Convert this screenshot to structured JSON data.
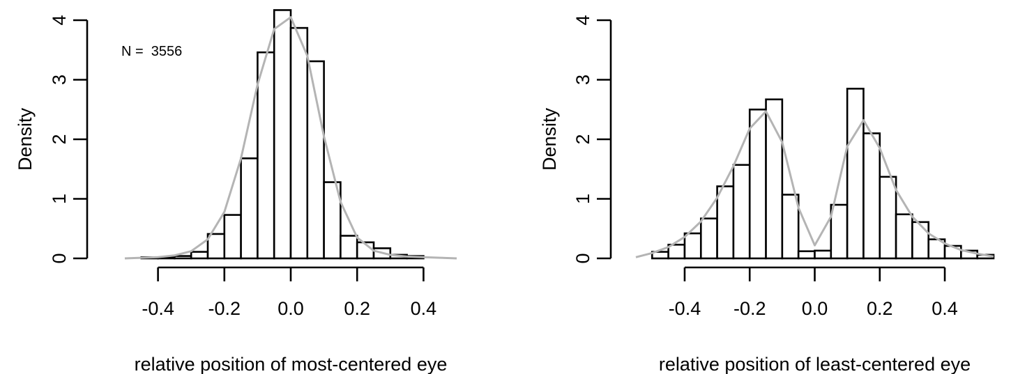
{
  "chart_data": [
    {
      "type": "bar",
      "subtype": "histogram",
      "xlabel": "relative position of most-centered eye",
      "ylabel": "Density",
      "annotation": "N =  3556",
      "xlim": [
        -0.5,
        0.5
      ],
      "ylim": [
        0,
        4
      ],
      "x_ticks": [
        -0.4,
        -0.2,
        0.0,
        0.2,
        0.4
      ],
      "x_tick_labels": [
        "-0.4",
        "-0.2",
        "0.0",
        "0.2",
        "0.4"
      ],
      "y_ticks": [
        0,
        1,
        2,
        3,
        4
      ],
      "y_tick_labels": [
        "0",
        "1",
        "2",
        "3",
        "4"
      ],
      "bin_width": 0.05,
      "bins": [
        {
          "from": -0.45,
          "to": -0.4,
          "density": 0.02
        },
        {
          "from": -0.4,
          "to": -0.35,
          "density": 0.02
        },
        {
          "from": -0.35,
          "to": -0.3,
          "density": 0.04
        },
        {
          "from": -0.3,
          "to": -0.25,
          "density": 0.11
        },
        {
          "from": -0.25,
          "to": -0.2,
          "density": 0.41
        },
        {
          "from": -0.2,
          "to": -0.15,
          "density": 0.73
        },
        {
          "from": -0.15,
          "to": -0.1,
          "density": 1.68
        },
        {
          "from": -0.1,
          "to": -0.05,
          "density": 3.46
        },
        {
          "from": -0.05,
          "to": 0.0,
          "density": 4.17
        },
        {
          "from": 0.0,
          "to": 0.05,
          "density": 3.87
        },
        {
          "from": 0.05,
          "to": 0.1,
          "density": 3.31
        },
        {
          "from": 0.1,
          "to": 0.15,
          "density": 1.28
        },
        {
          "from": 0.15,
          "to": 0.2,
          "density": 0.38
        },
        {
          "from": 0.2,
          "to": 0.25,
          "density": 0.27
        },
        {
          "from": 0.25,
          "to": 0.3,
          "density": 0.17
        },
        {
          "from": 0.3,
          "to": 0.35,
          "density": 0.06
        },
        {
          "from": 0.35,
          "to": 0.4,
          "density": 0.04
        }
      ],
      "density_curve": {
        "color": "#b4b4b4",
        "x": [
          -0.5,
          -0.45,
          -0.4,
          -0.35,
          -0.3,
          -0.25,
          -0.2,
          -0.15,
          -0.1,
          -0.05,
          0.0,
          0.05,
          0.1,
          0.15,
          0.2,
          0.25,
          0.3,
          0.35,
          0.4,
          0.45,
          0.5
        ],
        "y": [
          0.0,
          0.01,
          0.02,
          0.05,
          0.12,
          0.32,
          0.78,
          1.68,
          2.92,
          3.85,
          4.05,
          3.4,
          2.05,
          0.95,
          0.35,
          0.13,
          0.06,
          0.03,
          0.02,
          0.01,
          0.0
        ]
      },
      "grid": false,
      "bar_color": "#ffffff",
      "edge_color": "#000000"
    },
    {
      "type": "bar",
      "subtype": "histogram",
      "xlabel": "relative position of least-centered eye",
      "ylabel": "Density",
      "xlim": [
        -0.55,
        0.55
      ],
      "ylim": [
        0,
        4
      ],
      "x_ticks": [
        -0.4,
        -0.2,
        0.0,
        0.2,
        0.4
      ],
      "x_tick_labels": [
        "-0.4",
        "-0.2",
        "0.0",
        "0.2",
        "0.4"
      ],
      "y_ticks": [
        0,
        1,
        2,
        3,
        4
      ],
      "y_tick_labels": [
        "0",
        "1",
        "2",
        "3",
        "4"
      ],
      "bin_width": 0.05,
      "bins": [
        {
          "from": -0.5,
          "to": -0.45,
          "density": 0.11
        },
        {
          "from": -0.45,
          "to": -0.4,
          "density": 0.23
        },
        {
          "from": -0.4,
          "to": -0.35,
          "density": 0.42
        },
        {
          "from": -0.35,
          "to": -0.3,
          "density": 0.67
        },
        {
          "from": -0.3,
          "to": -0.25,
          "density": 1.21
        },
        {
          "from": -0.25,
          "to": -0.2,
          "density": 1.57
        },
        {
          "from": -0.2,
          "to": -0.15,
          "density": 2.5
        },
        {
          "from": -0.15,
          "to": -0.1,
          "density": 2.67
        },
        {
          "from": -0.1,
          "to": -0.05,
          "density": 1.07
        },
        {
          "from": -0.05,
          "to": 0.0,
          "density": 0.12
        },
        {
          "from": 0.0,
          "to": 0.05,
          "density": 0.13
        },
        {
          "from": 0.05,
          "to": 0.1,
          "density": 0.9
        },
        {
          "from": 0.1,
          "to": 0.15,
          "density": 2.85
        },
        {
          "from": 0.15,
          "to": 0.2,
          "density": 2.1
        },
        {
          "from": 0.2,
          "to": 0.25,
          "density": 1.37
        },
        {
          "from": 0.25,
          "to": 0.3,
          "density": 0.74
        },
        {
          "from": 0.3,
          "to": 0.35,
          "density": 0.61
        },
        {
          "from": 0.35,
          "to": 0.4,
          "density": 0.32
        },
        {
          "from": 0.4,
          "to": 0.45,
          "density": 0.21
        },
        {
          "from": 0.45,
          "to": 0.5,
          "density": 0.13
        },
        {
          "from": 0.5,
          "to": 0.55,
          "density": 0.06
        }
      ],
      "density_curve": {
        "color": "#b4b4b4",
        "x": [
          -0.55,
          -0.5,
          -0.45,
          -0.4,
          -0.35,
          -0.3,
          -0.25,
          -0.2,
          -0.15,
          -0.1,
          -0.05,
          0.0,
          0.05,
          0.1,
          0.15,
          0.2,
          0.25,
          0.3,
          0.35,
          0.4,
          0.45,
          0.5,
          0.55
        ],
        "y": [
          0.02,
          0.09,
          0.19,
          0.36,
          0.62,
          1.02,
          1.55,
          2.18,
          2.47,
          1.95,
          0.85,
          0.22,
          0.7,
          1.88,
          2.32,
          1.85,
          1.15,
          0.7,
          0.42,
          0.25,
          0.14,
          0.08,
          0.03
        ]
      },
      "grid": false,
      "bar_color": "#ffffff",
      "edge_color": "#000000"
    }
  ]
}
